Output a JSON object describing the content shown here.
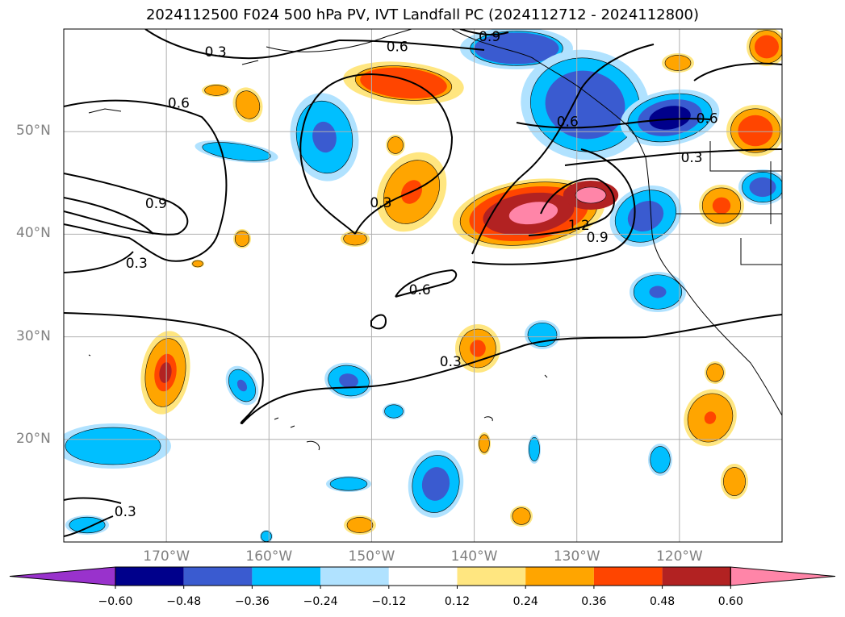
{
  "title": "2024112500 F024 500 hPa PV, IVT Landfall PC (2024112712 - 2024112800)",
  "map": {
    "lat_labels": [
      "50°N",
      "40°N",
      "30°N",
      "20°N"
    ],
    "lon_labels": [
      "170°W",
      "160°W",
      "150°W",
      "140°W",
      "130°W",
      "120°W"
    ],
    "contour_labels": [
      "0.3",
      "0.6",
      "0.9",
      "1.2"
    ],
    "contour_label_positions": [
      {
        "text": "0.3",
        "lon": -165.2,
        "lat": 57.8
      },
      {
        "text": "0.6",
        "lon": -147.5,
        "lat": 58.3
      },
      {
        "text": "0.9",
        "lon": -138.5,
        "lat": 59.3
      },
      {
        "text": "0.6",
        "lon": -168.8,
        "lat": 52.8
      },
      {
        "text": "0.9",
        "lon": -171.0,
        "lat": 43.0
      },
      {
        "text": "0.3",
        "lon": -172.9,
        "lat": 37.2
      },
      {
        "text": "0.3",
        "lon": -149.1,
        "lat": 43.1
      },
      {
        "text": "0.6",
        "lon": -130.9,
        "lat": 51.0
      },
      {
        "text": "0.6",
        "lon": -117.3,
        "lat": 51.3
      },
      {
        "text": "0.3",
        "lon": -118.8,
        "lat": 47.5
      },
      {
        "text": "1.2",
        "lon": -129.8,
        "lat": 40.9
      },
      {
        "text": "0.9",
        "lon": -128.0,
        "lat": 39.7
      },
      {
        "text": "0.6",
        "lon": -145.3,
        "lat": 34.6
      },
      {
        "text": "0.3",
        "lon": -142.3,
        "lat": 27.6
      },
      {
        "text": "0.3",
        "lon": -174.0,
        "lat": 13.0
      }
    ]
  },
  "colorbar": {
    "ticks": [
      "−0.60",
      "−0.48",
      "−0.36",
      "−0.24",
      "−0.12",
      "0.12",
      "0.24",
      "0.36",
      "0.48",
      "0.60"
    ],
    "colors": [
      "#9932cc",
      "#00008b",
      "#3a5bd0",
      "#00bfff",
      "#b0e2ff",
      "#ffffff",
      "#ffe680",
      "#ffa500",
      "#ff4500",
      "#b22222",
      "#ff85a8"
    ]
  },
  "colors": {
    "neg_strong": "#00008b",
    "neg_mid": "#3a5bd0",
    "neg": "#00bfff",
    "neg_light": "#b0e2ff",
    "pos_light": "#ffe680",
    "pos": "#ffa500",
    "pos_mid": "#ff4500",
    "pos_strong": "#b22222",
    "pos_max": "#ff85a8",
    "grid": "#b0b0b0",
    "contour": "#000000"
  }
}
